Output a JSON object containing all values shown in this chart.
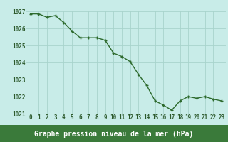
{
  "x": [
    0,
    1,
    2,
    3,
    4,
    5,
    6,
    7,
    8,
    9,
    10,
    11,
    12,
    13,
    14,
    15,
    16,
    17,
    18,
    19,
    20,
    21,
    22,
    23
  ],
  "y": [
    1026.85,
    1026.85,
    1026.65,
    1026.75,
    1026.35,
    1025.85,
    1025.45,
    1025.45,
    1025.45,
    1025.3,
    1024.55,
    1024.35,
    1024.05,
    1023.3,
    1022.65,
    1021.75,
    1021.5,
    1021.2,
    1021.75,
    1022.0,
    1021.9,
    1022.0,
    1021.85,
    1021.75
  ],
  "line_color": "#2d6a2d",
  "marker_color": "#2d6a2d",
  "bg_color": "#c8ece8",
  "footer_bg": "#3a7a3a",
  "grid_color": "#a8d4cc",
  "text_color": "#2d5a2d",
  "footer_text_color": "#000000",
  "xlabel": "Graphe pression niveau de la mer (hPa)",
  "ylim": [
    1021.0,
    1027.0
  ],
  "yticks": [
    1021,
    1022,
    1023,
    1024,
    1025,
    1026,
    1027
  ],
  "xticks": [
    0,
    1,
    2,
    3,
    4,
    5,
    6,
    7,
    8,
    9,
    10,
    11,
    12,
    13,
    14,
    15,
    16,
    17,
    18,
    19,
    20,
    21,
    22,
    23
  ],
  "xtick_labels": [
    "0",
    "1",
    "2",
    "3",
    "4",
    "5",
    "6",
    "7",
    "8",
    "9",
    "10",
    "11",
    "12",
    "13",
    "14",
    "15",
    "16",
    "17",
    "18",
    "19",
    "20",
    "21",
    "22",
    "23"
  ],
  "linewidth": 1.0,
  "markersize": 2.5,
  "xlabel_fontsize": 7.0,
  "tick_fontsize": 5.5
}
